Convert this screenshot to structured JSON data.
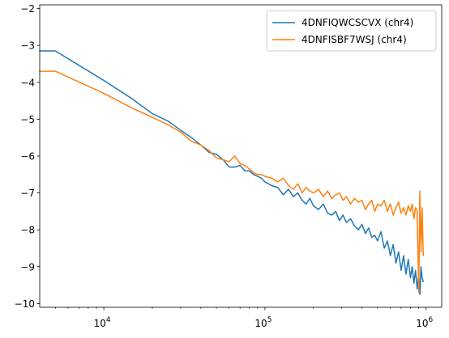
{
  "chart_data": {
    "type": "line",
    "title": "",
    "xlabel": "",
    "ylabel": "",
    "xscale": "log",
    "xlim": [
      4000,
      1250000
    ],
    "ylim": [
      -10.1,
      -1.9
    ],
    "grid": false,
    "legend_position": "top-right",
    "x_ticks": [
      {
        "value": 10000,
        "base": "10",
        "exp": "4"
      },
      {
        "value": 100000,
        "base": "10",
        "exp": "5"
      },
      {
        "value": 1000000,
        "base": "10",
        "exp": "6"
      }
    ],
    "y_ticks": [
      {
        "value": -2,
        "label": "−2"
      },
      {
        "value": -3,
        "label": "−3"
      },
      {
        "value": -4,
        "label": "−4"
      },
      {
        "value": -5,
        "label": "−5"
      },
      {
        "value": -6,
        "label": "−6"
      },
      {
        "value": -7,
        "label": "−7"
      },
      {
        "value": -8,
        "label": "−8"
      },
      {
        "value": -9,
        "label": "−9"
      },
      {
        "value": -10,
        "label": "−10"
      }
    ],
    "series": [
      {
        "name": "4DNFIQWCSCVX (chr4)",
        "color": "#1f77b4",
        "x": [
          4000,
          5000,
          10000,
          15000,
          20000,
          25000,
          30000,
          35000,
          40000,
          45000,
          50000,
          55000,
          60000,
          65000,
          70000,
          75000,
          80000,
          85000,
          90000,
          95000,
          100000,
          110000,
          120000,
          130000,
          140000,
          150000,
          160000,
          170000,
          180000,
          190000,
          200000,
          215000,
          230000,
          245000,
          260000,
          275000,
          290000,
          305000,
          320000,
          340000,
          360000,
          380000,
          400000,
          420000,
          440000,
          460000,
          480000,
          500000,
          525000,
          550000,
          575000,
          600000,
          625000,
          650000,
          675000,
          700000,
          725000,
          750000,
          775000,
          800000,
          820000,
          840000,
          860000,
          880000,
          900000,
          915000,
          930000,
          945000,
          960000
        ],
        "y": [
          -3.15,
          -3.15,
          -3.95,
          -4.45,
          -4.85,
          -5.05,
          -5.3,
          -5.5,
          -5.7,
          -5.9,
          -5.95,
          -6.1,
          -6.3,
          -6.3,
          -6.25,
          -6.4,
          -6.4,
          -6.5,
          -6.55,
          -6.6,
          -6.7,
          -6.8,
          -6.85,
          -7.05,
          -6.9,
          -7.1,
          -7.0,
          -7.2,
          -7.3,
          -7.15,
          -7.35,
          -7.45,
          -7.3,
          -7.55,
          -7.6,
          -7.5,
          -7.75,
          -7.6,
          -7.8,
          -7.7,
          -7.9,
          -8.0,
          -7.85,
          -8.1,
          -7.95,
          -8.2,
          -8.15,
          -8.3,
          -8.05,
          -8.5,
          -8.3,
          -8.7,
          -8.4,
          -8.9,
          -8.6,
          -9.1,
          -8.7,
          -9.2,
          -8.8,
          -9.3,
          -9.0,
          -9.45,
          -9.1,
          -9.6,
          -9.2,
          -9.75,
          -9.0,
          -9.3,
          -9.4
        ]
      },
      {
        "name": "4DNFISBF7WSJ (chr4)",
        "color": "#ff7f0e",
        "x": [
          4000,
          5000,
          10000,
          15000,
          20000,
          25000,
          30000,
          35000,
          40000,
          45000,
          50000,
          55000,
          60000,
          65000,
          70000,
          75000,
          80000,
          85000,
          90000,
          95000,
          100000,
          110000,
          120000,
          130000,
          140000,
          150000,
          160000,
          170000,
          180000,
          190000,
          200000,
          215000,
          230000,
          245000,
          260000,
          275000,
          290000,
          305000,
          320000,
          340000,
          360000,
          380000,
          400000,
          420000,
          440000,
          460000,
          480000,
          500000,
          525000,
          550000,
          575000,
          600000,
          625000,
          650000,
          675000,
          700000,
          725000,
          750000,
          775000,
          800000,
          820000,
          840000,
          860000,
          880000,
          900000,
          915000,
          930000,
          945000,
          960000
        ],
        "y": [
          -3.7,
          -3.7,
          -4.3,
          -4.7,
          -4.95,
          -5.15,
          -5.35,
          -5.6,
          -5.7,
          -5.85,
          -6.05,
          -6.1,
          -6.15,
          -6.0,
          -6.2,
          -6.25,
          -6.35,
          -6.45,
          -6.5,
          -6.5,
          -6.55,
          -6.6,
          -6.7,
          -6.6,
          -6.8,
          -6.9,
          -6.75,
          -7.0,
          -6.85,
          -6.95,
          -7.0,
          -6.9,
          -7.1,
          -6.95,
          -7.15,
          -7.05,
          -7.0,
          -7.2,
          -7.1,
          -7.3,
          -7.15,
          -7.25,
          -7.2,
          -7.45,
          -7.3,
          -7.2,
          -7.5,
          -7.3,
          -7.35,
          -7.2,
          -7.5,
          -7.3,
          -7.6,
          -7.4,
          -7.25,
          -7.55,
          -7.4,
          -7.6,
          -7.35,
          -7.5,
          -7.3,
          -7.7,
          -7.4,
          -7.45,
          -9.7,
          -6.95,
          -8.6,
          -7.4,
          -8.7
        ]
      }
    ]
  }
}
